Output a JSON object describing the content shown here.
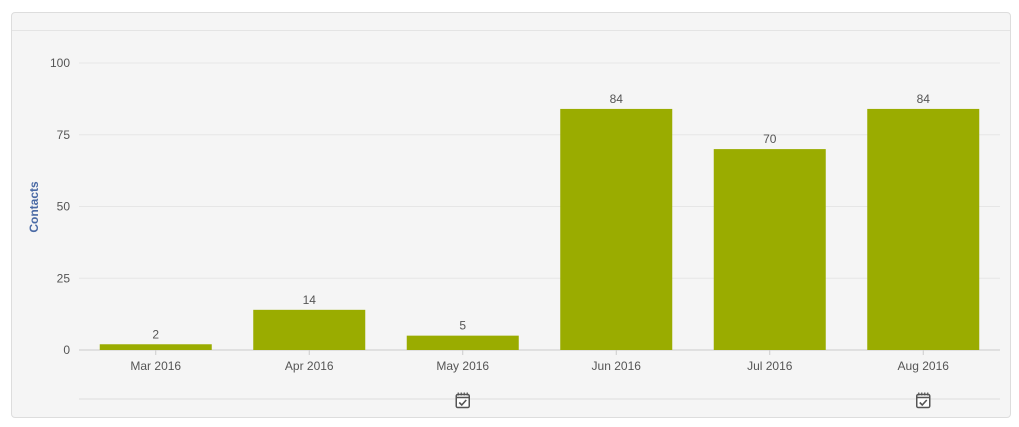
{
  "chart_data": {
    "type": "bar",
    "categories": [
      "Mar 2016",
      "Apr 2016",
      "May 2016",
      "Jun 2016",
      "Jul 2016",
      "Aug 2016"
    ],
    "values": [
      2,
      14,
      5,
      84,
      70,
      84
    ],
    "data_labels": [
      "2",
      "14",
      "5",
      "84",
      "70",
      "84"
    ],
    "ylabel": "Contacts",
    "ylim": [
      0,
      100
    ],
    "yticks": [
      0,
      25,
      50,
      75,
      100
    ],
    "ytick_labels": [
      "0",
      "25",
      "50",
      "75",
      "100"
    ],
    "grid": true,
    "bar_color": "#9aac00",
    "ylabel_color": "#4a6aa5",
    "event_markers": [
      {
        "category": "May 2016",
        "icon": "calendar-check-icon"
      },
      {
        "category": "Aug 2016",
        "icon": "calendar-check-icon"
      }
    ]
  }
}
